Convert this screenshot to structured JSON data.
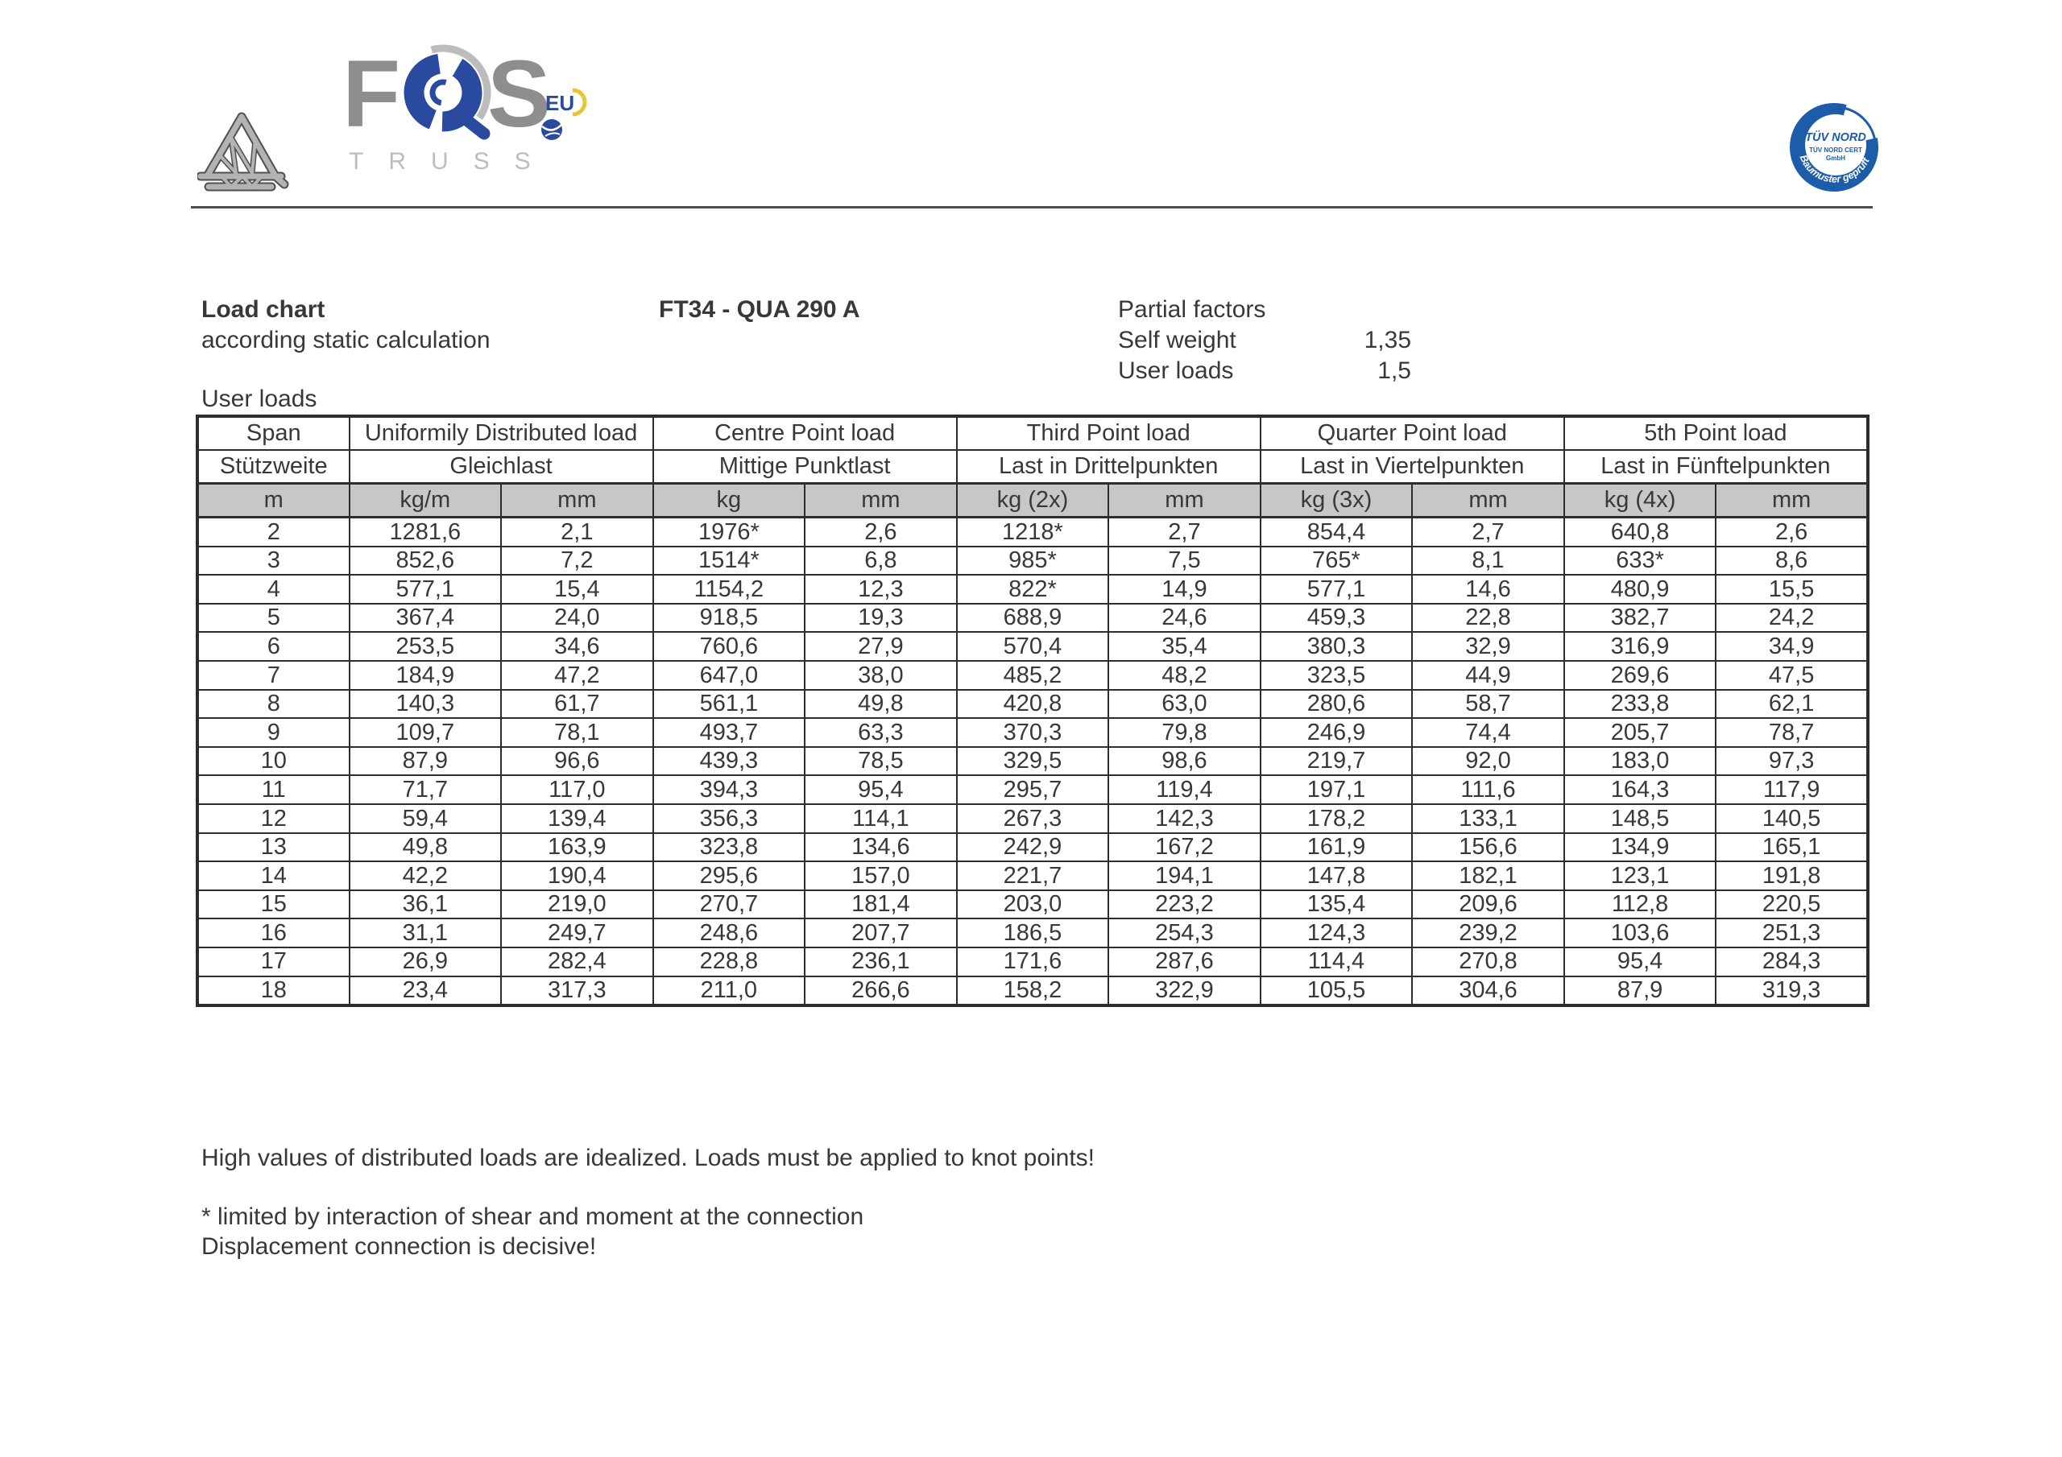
{
  "logo": {
    "letter_f": "F",
    "letter_s": "S",
    "wordmark": "TRUSS",
    "eu_label": "EU"
  },
  "tuv_badge": {
    "line1": "TÜV NORD",
    "line2": "TÜV NORD CERT",
    "line3": "GmbH",
    "arc_text": "Baumuster geprüft"
  },
  "header": {
    "title": "Load chart",
    "subtitle": "according static calculation",
    "product_code": "FT34 - QUA 290 A",
    "partial_factors": {
      "heading": "Partial factors",
      "rows": [
        {
          "label": "Self weight",
          "value": "1,35"
        },
        {
          "label": "User loads",
          "value": "1,5"
        }
      ]
    }
  },
  "table": {
    "caption": "User loads",
    "groups": [
      {
        "en": "Span",
        "de": "Stützweite"
      },
      {
        "en": "Uniformily Distributed load",
        "de": "Gleichlast"
      },
      {
        "en": "Centre Point load",
        "de": "Mittige Punktlast"
      },
      {
        "en": "Third Point load",
        "de": "Last in Drittelpunkten"
      },
      {
        "en": "Quarter Point load",
        "de": "Last in Viertelpunkten"
      },
      {
        "en": "5th Point load",
        "de": "Last in Fünftelpunkten"
      }
    ],
    "unit_cells": [
      "m",
      "kg/m",
      "mm",
      "kg",
      "mm",
      "kg (2x)",
      "mm",
      "kg (3x)",
      "mm",
      "kg (4x)",
      "mm"
    ],
    "rows": [
      [
        "2",
        "1281,6",
        "2,1",
        "1976*",
        "2,6",
        "1218*",
        "2,7",
        "854,4",
        "2,7",
        "640,8",
        "2,6"
      ],
      [
        "3",
        "852,6",
        "7,2",
        "1514*",
        "6,8",
        "985*",
        "7,5",
        "765*",
        "8,1",
        "633*",
        "8,6"
      ],
      [
        "4",
        "577,1",
        "15,4",
        "1154,2",
        "12,3",
        "822*",
        "14,9",
        "577,1",
        "14,6",
        "480,9",
        "15,5"
      ],
      [
        "5",
        "367,4",
        "24,0",
        "918,5",
        "19,3",
        "688,9",
        "24,6",
        "459,3",
        "22,8",
        "382,7",
        "24,2"
      ],
      [
        "6",
        "253,5",
        "34,6",
        "760,6",
        "27,9",
        "570,4",
        "35,4",
        "380,3",
        "32,9",
        "316,9",
        "34,9"
      ],
      [
        "7",
        "184,9",
        "47,2",
        "647,0",
        "38,0",
        "485,2",
        "48,2",
        "323,5",
        "44,9",
        "269,6",
        "47,5"
      ],
      [
        "8",
        "140,3",
        "61,7",
        "561,1",
        "49,8",
        "420,8",
        "63,0",
        "280,6",
        "58,7",
        "233,8",
        "62,1"
      ],
      [
        "9",
        "109,7",
        "78,1",
        "493,7",
        "63,3",
        "370,3",
        "79,8",
        "246,9",
        "74,4",
        "205,7",
        "78,7"
      ],
      [
        "10",
        "87,9",
        "96,6",
        "439,3",
        "78,5",
        "329,5",
        "98,6",
        "219,7",
        "92,0",
        "183,0",
        "97,3"
      ],
      [
        "11",
        "71,7",
        "117,0",
        "394,3",
        "95,4",
        "295,7",
        "119,4",
        "197,1",
        "111,6",
        "164,3",
        "117,9"
      ],
      [
        "12",
        "59,4",
        "139,4",
        "356,3",
        "114,1",
        "267,3",
        "142,3",
        "178,2",
        "133,1",
        "148,5",
        "140,5"
      ],
      [
        "13",
        "49,8",
        "163,9",
        "323,8",
        "134,6",
        "242,9",
        "167,2",
        "161,9",
        "156,6",
        "134,9",
        "165,1"
      ],
      [
        "14",
        "42,2",
        "190,4",
        "295,6",
        "157,0",
        "221,7",
        "194,1",
        "147,8",
        "182,1",
        "123,1",
        "191,8"
      ],
      [
        "15",
        "36,1",
        "219,0",
        "270,7",
        "181,4",
        "203,0",
        "223,2",
        "135,4",
        "209,6",
        "112,8",
        "220,5"
      ],
      [
        "16",
        "31,1",
        "249,7",
        "248,6",
        "207,7",
        "186,5",
        "254,3",
        "124,3",
        "239,2",
        "103,6",
        "251,3"
      ],
      [
        "17",
        "26,9",
        "282,4",
        "228,8",
        "236,1",
        "171,6",
        "287,6",
        "114,4",
        "270,8",
        "95,4",
        "284,3"
      ],
      [
        "18",
        "23,4",
        "317,3",
        "211,0",
        "266,6",
        "158,2",
        "322,9",
        "105,5",
        "304,6",
        "87,9",
        "319,3"
      ]
    ]
  },
  "notes": {
    "note1": "High values of distributed loads are idealized. Loads must be applied to knot points!",
    "note2": "* limited by interaction of shear and moment at the connection",
    "note3": "Displacement connection is decisive!"
  },
  "colors": {
    "logo_blue": "#2a4a9f",
    "tuv_blue": "#1c5ca8",
    "logo_gray": "#8e8e8e",
    "logo_light_gray": "#bcbcbc",
    "eu_yellow": "#e6c733",
    "unit_row_bg": "#c7c7c7",
    "table_border": "#2d2d2d"
  }
}
